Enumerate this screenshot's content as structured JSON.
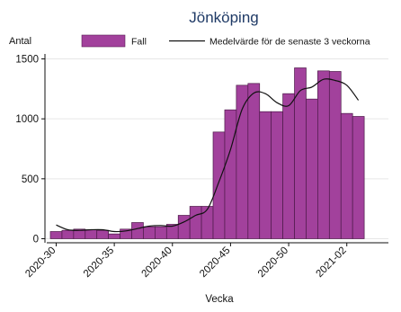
{
  "chart_data": {
    "type": "bar",
    "title": "Jönköping",
    "ylabel": "Antal",
    "xlabel": "Vecka",
    "ylim": [
      0,
      1600
    ],
    "y_ticks": [
      0,
      500,
      1000,
      1500
    ],
    "x_tick_labels": [
      "2020-30",
      "2020-35",
      "2020-40",
      "2020-45",
      "2020-50",
      "2021-02"
    ],
    "x_tick_weeks": [
      "2020-30",
      "2020-35",
      "2020-40",
      "2020-45",
      "2020-50",
      "2021-02"
    ],
    "weeks": [
      "2020-30",
      "2020-31",
      "2020-32",
      "2020-33",
      "2020-34",
      "2020-35",
      "2020-36",
      "2020-37",
      "2020-38",
      "2020-39",
      "2020-40",
      "2020-41",
      "2020-42",
      "2020-43",
      "2020-44",
      "2020-45",
      "2020-46",
      "2020-47",
      "2020-48",
      "2020-49",
      "2020-50",
      "2020-51",
      "2020-52",
      "2020-53",
      "2021-01",
      "2021-02",
      "2021-03"
    ],
    "legend_placement": "top",
    "grid": true,
    "bar_color": "#a2419c",
    "line_color": "#111111",
    "series": [
      {
        "name": "Fall",
        "kind": "bar",
        "values": [
          60,
          70,
          80,
          75,
          70,
          40,
          80,
          135,
          100,
          100,
          120,
          195,
          270,
          270,
          890,
          1075,
          1280,
          1295,
          1060,
          1060,
          1210,
          1425,
          1165,
          1400,
          1395,
          1045,
          1020
        ]
      },
      {
        "name": "Medelvärde för de senaste 3 veckorna",
        "kind": "line",
        "values": [
          115,
          75,
          70,
          75,
          75,
          60,
          65,
          85,
          105,
          110,
          105,
          140,
          195,
          245,
          475,
          745,
          1080,
          1215,
          1210,
          1135,
          1110,
          1235,
          1265,
          1330,
          1320,
          1280,
          1155
        ]
      }
    ]
  }
}
